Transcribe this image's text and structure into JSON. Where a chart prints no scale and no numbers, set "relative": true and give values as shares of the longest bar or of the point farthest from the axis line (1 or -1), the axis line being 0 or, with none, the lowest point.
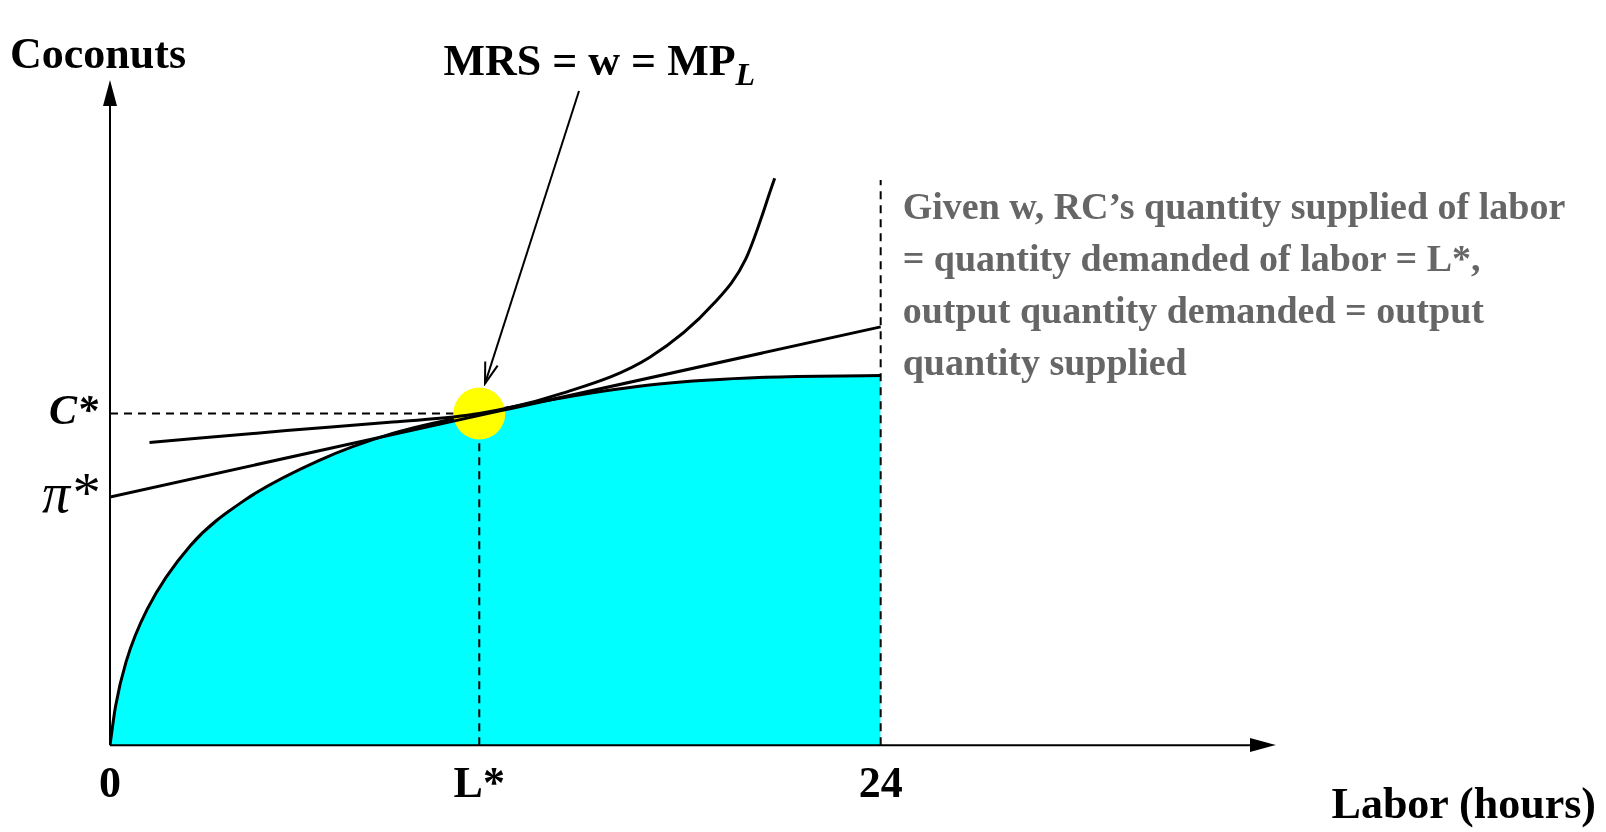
{
  "chart_data": {
    "type": "line",
    "relative": true,
    "xlabel": "Labor (hours)",
    "ylabel": "Coconuts",
    "xlim": [
      0,
      36
    ],
    "xticks": [
      0,
      {
        "value": 11.5,
        "label": "L*"
      },
      24
    ],
    "grid": false,
    "legend": false,
    "series": [
      {
        "type": "area",
        "color": "#00ffff",
        "x": [
          0,
          0.17,
          0.5,
          1.16,
          2.5,
          4.16,
          6.5,
          8.8,
          11.5,
          14.1,
          17.1,
          20.4,
          24
        ],
        "values": [
          0,
          0.068,
          0.147,
          0.24,
          0.352,
          0.431,
          0.502,
          0.55,
          0.585,
          0.613,
          0.637,
          0.649,
          0.652
        ]
      },
      {
        "type": "line",
        "color": "#000000",
        "x": [
          0,
          24
        ],
        "values": [
          0.438,
          0.738
        ]
      },
      {
        "type": "line",
        "color": "#000000",
        "x": [
          1.23,
          5.5,
          8.8,
          11.5,
          14.1,
          16.8,
          18.8,
          19.8,
          20.7
        ],
        "values": [
          0.534,
          0.555,
          0.57,
          0.585,
          0.621,
          0.684,
          0.779,
          0.858,
          1
        ]
      },
      {
        "type": "scatter",
        "color": "#ffff00",
        "x": [
          11.5
        ],
        "values": [
          0.585
        ]
      }
    ],
    "ref_lines": [
      {
        "axis": "y",
        "value": 0.585,
        "label": "C*",
        "line_style": "dashed"
      },
      {
        "axis": "x",
        "value": 11.5,
        "line_style": "dashed"
      },
      {
        "axis": "x",
        "value": 24,
        "line_style": "dashed"
      }
    ],
    "annotations": [
      {
        "text": "π*",
        "x": 0,
        "y": 0.438
      },
      "MRS = w = MP$_{L}$",
      "Given w, RC’s quantity supplied of labor = quantity demanded of labor = L*, output quantity demanded = output quantity supplied"
    ]
  }
}
